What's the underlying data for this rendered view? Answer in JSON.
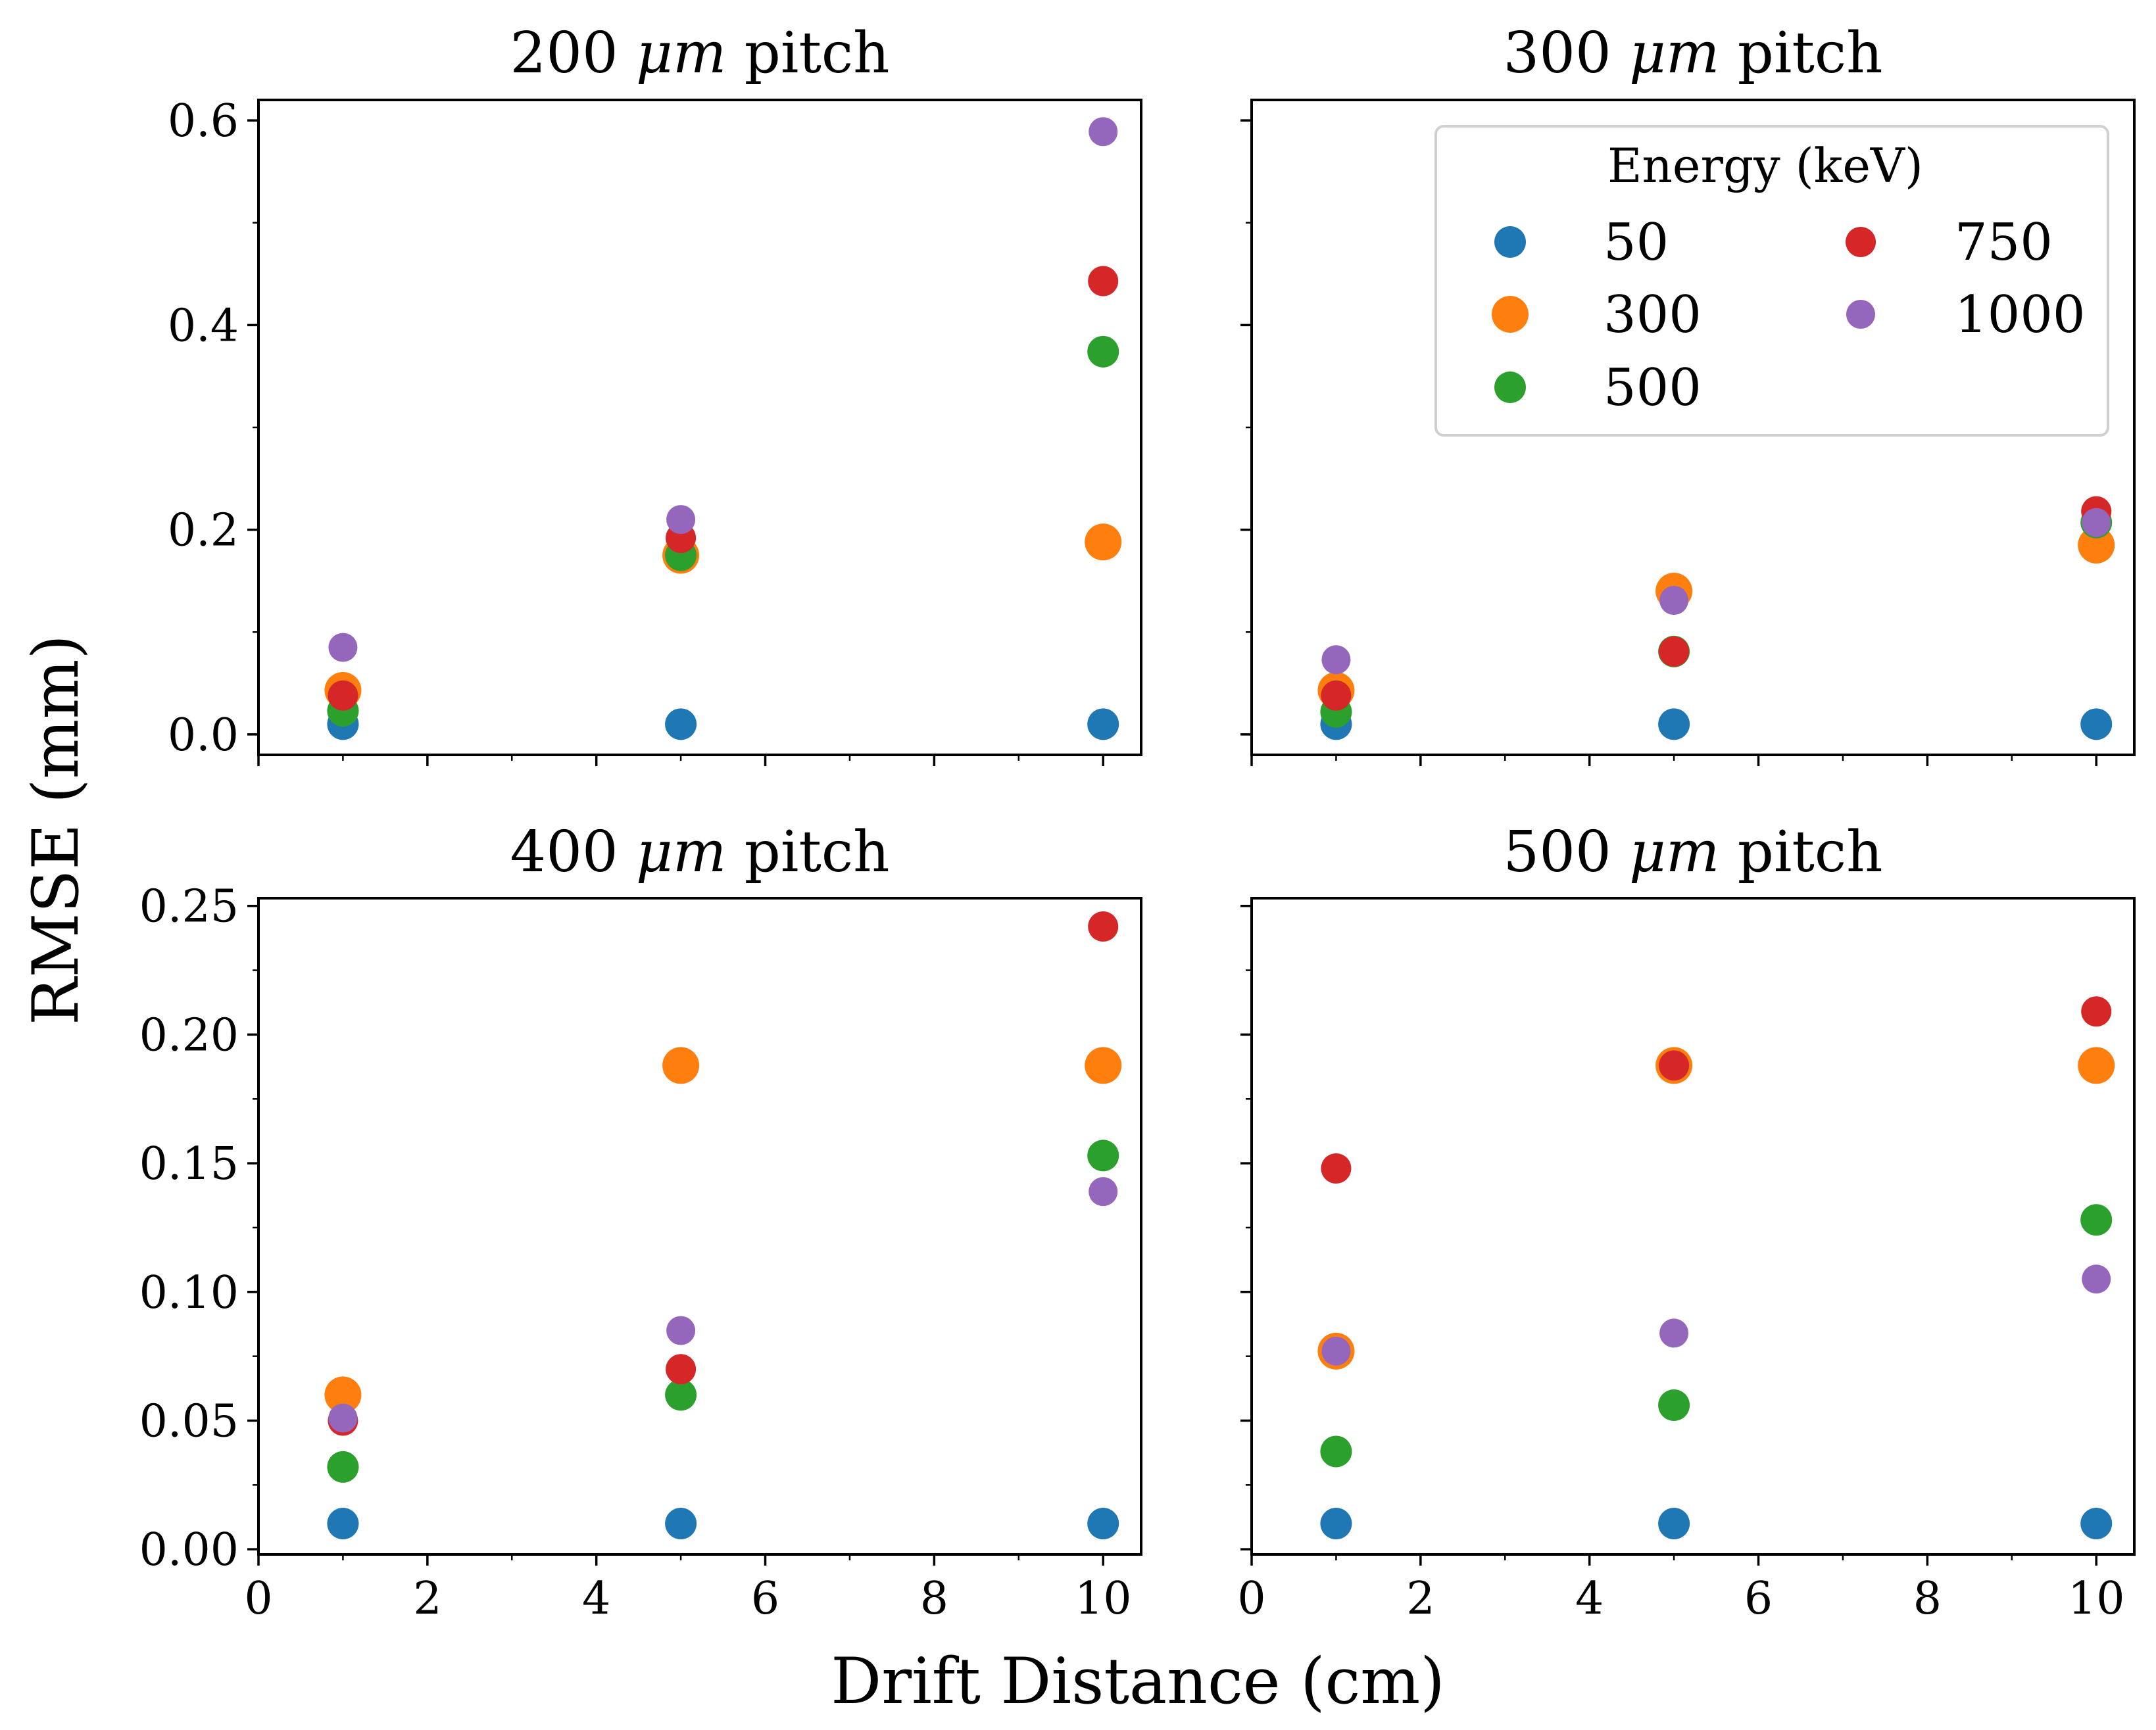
{
  "chart_data": {
    "type": "scatter",
    "xlabel": "Drift Distance (cm)",
    "ylabel": "RMSE (mm)",
    "x_ticks": [
      "0",
      "2",
      "4",
      "6",
      "8",
      "10"
    ],
    "xlim": [
      0,
      10.45
    ],
    "legend": {
      "title": "Energy (keV)",
      "placement": "upper-right of 300 µm panel",
      "entries": [
        {
          "label": "50",
          "color": "#1f77b4"
        },
        {
          "label": "300",
          "color": "#ff7f0e"
        },
        {
          "label": "500",
          "color": "#2ca02c"
        },
        {
          "label": "750",
          "color": "#d62728"
        },
        {
          "label": "1000",
          "color": "#9467bd"
        }
      ]
    },
    "panels": [
      {
        "title_prefix": "200",
        "title_unit": "μm",
        "title_suffix": "pitch",
        "ylim": [
          -0.02,
          0.62
        ],
        "y_ticks": [
          "0.0",
          "0.2",
          "0.4",
          "0.6"
        ],
        "y_tick_values": [
          0,
          0.2,
          0.4,
          0.6
        ],
        "x": [
          1,
          5,
          10
        ],
        "series": [
          {
            "name": "50",
            "values": [
              0.01,
              0.01,
              0.01
            ]
          },
          {
            "name": "300",
            "values": [
              0.043,
              0.175,
              0.188
            ]
          },
          {
            "name": "500",
            "values": [
              0.023,
              0.175,
              0.374
            ]
          },
          {
            "name": "750",
            "values": [
              0.038,
              0.192,
              0.443
            ]
          },
          {
            "name": "1000",
            "values": [
              0.085,
              0.21,
              0.589
            ]
          }
        ]
      },
      {
        "title_prefix": "300",
        "title_unit": "μm",
        "title_suffix": "pitch",
        "ylim": [
          -0.02,
          0.62
        ],
        "y_ticks": [],
        "y_tick_values": [
          0,
          0.2,
          0.4,
          0.6
        ],
        "x": [
          1,
          5,
          10
        ],
        "series": [
          {
            "name": "50",
            "values": [
              0.01,
              0.01,
              0.01
            ]
          },
          {
            "name": "300",
            "values": [
              0.043,
              0.14,
              0.185
            ]
          },
          {
            "name": "500",
            "values": [
              0.022,
              0.081,
              0.207
            ]
          },
          {
            "name": "750",
            "values": [
              0.038,
              0.081,
              0.218
            ]
          },
          {
            "name": "1000",
            "values": [
              0.073,
              0.131,
              0.207
            ]
          }
        ]
      },
      {
        "title_prefix": "400",
        "title_unit": "μm",
        "title_suffix": "pitch",
        "ylim": [
          -0.002,
          0.253
        ],
        "y_ticks": [
          "0.00",
          "0.05",
          "0.10",
          "0.15",
          "0.20",
          "0.25"
        ],
        "y_tick_values": [
          0,
          0.05,
          0.1,
          0.15,
          0.2,
          0.25
        ],
        "x": [
          1,
          5,
          10
        ],
        "series": [
          {
            "name": "50",
            "values": [
              0.01,
              0.01,
              0.01
            ]
          },
          {
            "name": "300",
            "values": [
              0.06,
              0.188,
              0.188
            ]
          },
          {
            "name": "500",
            "values": [
              0.032,
              0.06,
              0.153
            ]
          },
          {
            "name": "750",
            "values": [
              0.05,
              0.07,
              0.242
            ]
          },
          {
            "name": "1000",
            "values": [
              0.051,
              0.085,
              0.139
            ]
          }
        ]
      },
      {
        "title_prefix": "500",
        "title_unit": "μm",
        "title_suffix": "pitch",
        "ylim": [
          -0.002,
          0.253
        ],
        "y_ticks": [],
        "y_tick_values": [
          0,
          0.05,
          0.1,
          0.15,
          0.2,
          0.25
        ],
        "x": [
          1,
          5,
          10
        ],
        "series": [
          {
            "name": "50",
            "values": [
              0.01,
              0.01,
              0.01
            ]
          },
          {
            "name": "300",
            "values": [
              0.077,
              0.188,
              0.188
            ]
          },
          {
            "name": "500",
            "values": [
              0.038,
              0.056,
              0.128
            ]
          },
          {
            "name": "750",
            "values": [
              0.148,
              0.188,
              0.209
            ]
          },
          {
            "name": "1000",
            "values": [
              0.077,
              0.084,
              0.105
            ]
          }
        ]
      }
    ]
  }
}
